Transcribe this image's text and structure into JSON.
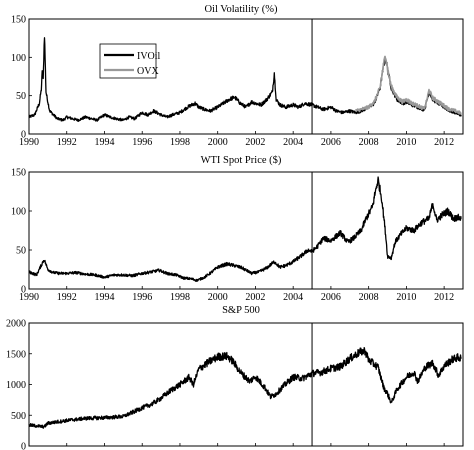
{
  "chart_data": [
    {
      "type": "line",
      "title": "Oil Volatility (%)",
      "xlim": [
        1990,
        2013
      ],
      "ylim": [
        0,
        150
      ],
      "x_ticks": [
        1990,
        1992,
        1994,
        1996,
        1998,
        2000,
        2002,
        2004,
        2006,
        2008,
        2010,
        2012
      ],
      "y_ticks": [
        0,
        50,
        100,
        150
      ],
      "vline": 2005,
      "legend": "top-left",
      "series": [
        {
          "name": "IVOil",
          "color": "#000000",
          "x": [
            1990.0,
            1990.3,
            1990.55,
            1990.65,
            1990.7,
            1990.75,
            1990.82,
            1990.9,
            1991.0,
            1991.1,
            1991.3,
            1991.5,
            1991.8,
            1992.0,
            1992.3,
            1992.6,
            1993.0,
            1993.3,
            1993.6,
            1994.0,
            1994.3,
            1994.6,
            1995.0,
            1995.3,
            1995.6,
            1996.0,
            1996.3,
            1996.6,
            1997.0,
            1997.3,
            1997.6,
            1998.0,
            1998.4,
            1998.8,
            1999.0,
            1999.3,
            1999.6,
            2000.0,
            2000.3,
            2000.6,
            2000.9,
            2001.2,
            2001.5,
            2001.8,
            2002.0,
            2002.3,
            2002.6,
            2002.9,
            2003.0,
            2003.1,
            2003.3,
            2003.6,
            2004.0,
            2004.3,
            2004.6,
            2005.0,
            2005.3,
            2005.6,
            2006.0,
            2006.3,
            2006.6,
            2007.0,
            2007.3,
            2007.6,
            2008.0,
            2008.3,
            2008.6,
            2008.8,
            2008.9,
            2009.0,
            2009.2,
            2009.5,
            2009.8,
            2010.0,
            2010.3,
            2010.6,
            2010.9,
            2011.0,
            2011.2,
            2011.4,
            2011.7,
            2012.0,
            2012.3,
            2012.6,
            2012.9
          ],
          "values": [
            22,
            25,
            40,
            58,
            80,
            70,
            130,
            55,
            42,
            30,
            25,
            20,
            18,
            22,
            20,
            18,
            22,
            20,
            18,
            25,
            22,
            20,
            18,
            22,
            20,
            28,
            25,
            30,
            25,
            22,
            25,
            28,
            35,
            40,
            35,
            32,
            30,
            35,
            40,
            45,
            48,
            40,
            35,
            42,
            40,
            38,
            45,
            55,
            80,
            45,
            38,
            35,
            38,
            35,
            40,
            38,
            35,
            32,
            35,
            30,
            28,
            30,
            28,
            30,
            35,
            40,
            60,
            90,
            100,
            85,
            60,
            45,
            40,
            42,
            38,
            35,
            32,
            35,
            55,
            45,
            40,
            35,
            30,
            28,
            25
          ]
        },
        {
          "name": "OVX",
          "color": "#999999",
          "x": [
            2007.3,
            2007.6,
            2008.0,
            2008.3,
            2008.6,
            2008.8,
            2008.9,
            2009.0,
            2009.2,
            2009.5,
            2009.8,
            2010.0,
            2010.3,
            2010.6,
            2010.9,
            2011.0,
            2011.2,
            2011.4,
            2011.7,
            2012.0,
            2012.3,
            2012.6,
            2012.9
          ],
          "values": [
            30,
            32,
            35,
            42,
            60,
            92,
            103,
            85,
            62,
            48,
            42,
            45,
            40,
            37,
            33,
            36,
            57,
            47,
            42,
            37,
            32,
            30,
            27
          ]
        }
      ]
    },
    {
      "type": "line",
      "title": "WTI Spot Price ($)",
      "xlim": [
        1990,
        2013
      ],
      "ylim": [
        0,
        150
      ],
      "x_ticks": [
        1990,
        1992,
        1994,
        1996,
        1998,
        2000,
        2002,
        2004,
        2006,
        2008,
        2010,
        2012
      ],
      "y_ticks": [
        0,
        50,
        100,
        150
      ],
      "vline": 2005,
      "series": [
        {
          "color": "#000000",
          "x": [
            1990.0,
            1990.4,
            1990.6,
            1990.8,
            1991.0,
            1991.3,
            1991.6,
            1992.0,
            1992.5,
            1993.0,
            1993.5,
            1994.0,
            1994.5,
            1995.0,
            1995.5,
            1996.0,
            1996.5,
            1996.9,
            1997.3,
            1997.8,
            1998.2,
            1998.6,
            1998.9,
            1999.3,
            1999.7,
            2000.0,
            2000.5,
            2000.9,
            2001.3,
            2001.8,
            2002.2,
            2002.6,
            2003.0,
            2003.3,
            2003.6,
            2004.0,
            2004.4,
            2004.8,
            2005.0,
            2005.3,
            2005.6,
            2006.0,
            2006.5,
            2006.9,
            2007.2,
            2007.6,
            2007.9,
            2008.2,
            2008.4,
            2008.5,
            2008.7,
            2008.9,
            2009.0,
            2009.2,
            2009.4,
            2009.7,
            2010.0,
            2010.4,
            2010.8,
            2011.2,
            2011.4,
            2011.6,
            2011.9,
            2012.2,
            2012.5,
            2012.7,
            2012.9
          ],
          "values": [
            22,
            18,
            28,
            38,
            25,
            21,
            20,
            20,
            21,
            19,
            18,
            15,
            18,
            18,
            17,
            20,
            22,
            24,
            20,
            18,
            14,
            13,
            11,
            15,
            22,
            28,
            32,
            30,
            27,
            20,
            22,
            27,
            35,
            28,
            30,
            35,
            42,
            50,
            48,
            55,
            65,
            62,
            72,
            60,
            65,
            75,
            92,
            105,
            130,
            140,
            115,
            70,
            42,
            40,
            60,
            70,
            78,
            75,
            85,
            90,
            110,
            88,
            95,
            100,
            90,
            92,
            90
          ]
        }
      ]
    },
    {
      "type": "line",
      "title": "S&P 500",
      "xlim": [
        1990,
        2013
      ],
      "ylim": [
        0,
        2000
      ],
      "x_ticks": [
        1990,
        1992,
        1994,
        1996,
        1998,
        2000,
        2002,
        2004,
        2006,
        2008,
        2010,
        2012
      ],
      "y_ticks": [
        0,
        500,
        1000,
        1500,
        2000
      ],
      "vline": 2005,
      "series": [
        {
          "color": "#000000",
          "x": [
            1990.0,
            1990.6,
            1990.8,
            1991.0,
            1992.0,
            1993.0,
            1994.0,
            1995.0,
            1995.5,
            1996.0,
            1996.5,
            1997.0,
            1997.5,
            1998.0,
            1998.5,
            1998.7,
            1999.0,
            1999.5,
            2000.0,
            2000.5,
            2000.8,
            2001.2,
            2001.7,
            2002.0,
            2002.5,
            2002.8,
            2003.1,
            2003.5,
            2004.0,
            2004.5,
            2005.0,
            2005.5,
            2006.0,
            2006.5,
            2007.0,
            2007.5,
            2007.8,
            2008.0,
            2008.5,
            2008.8,
            2009.0,
            2009.2,
            2009.5,
            2010.0,
            2010.4,
            2010.6,
            2011.0,
            2011.4,
            2011.7,
            2012.0,
            2012.4,
            2012.7,
            2012.9
          ],
          "values": [
            340,
            320,
            310,
            370,
            415,
            450,
            460,
            480,
            550,
            620,
            680,
            780,
            900,
            1000,
            1120,
            990,
            1250,
            1360,
            1450,
            1460,
            1380,
            1200,
            1050,
            1130,
            950,
            800,
            850,
            980,
            1120,
            1100,
            1180,
            1200,
            1260,
            1290,
            1420,
            1520,
            1550,
            1400,
            1280,
            950,
            850,
            700,
            920,
            1120,
            1200,
            1050,
            1280,
            1350,
            1150,
            1300,
            1400,
            1440,
            1420
          ]
        }
      ]
    }
  ]
}
